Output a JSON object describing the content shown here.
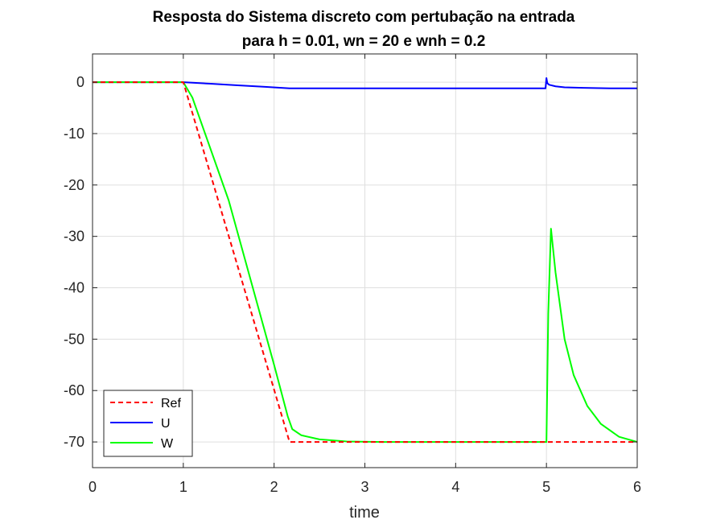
{
  "chart_data": {
    "type": "line",
    "title": [
      "Resposta do Sistema discreto com pertubação na entrada",
      "para h = 0.01, wn = 20 e wnh = 0.2"
    ],
    "xlabel": "time",
    "ylabel": "",
    "xlim": [
      0,
      6
    ],
    "ylim": [
      -75,
      5.5
    ],
    "xticks": [
      0,
      1,
      2,
      3,
      4,
      5,
      6
    ],
    "yticks": [
      0,
      -10,
      -20,
      -30,
      -40,
      -50,
      -60,
      -70
    ],
    "grid": true,
    "legend_position": "bottom-left",
    "series": [
      {
        "name": "Ref",
        "color": "#ff0000",
        "style": "dashed",
        "x": [
          0,
          1,
          2.17,
          5,
          6
        ],
        "y": [
          0,
          0,
          -70,
          -70,
          -70
        ]
      },
      {
        "name": "U",
        "color": "#0000ff",
        "style": "solid",
        "x": [
          0,
          1,
          1.3,
          1.6,
          1.9,
          2.17,
          2.5,
          3,
          4,
          4.99,
          5,
          5.01,
          5.03,
          5.1,
          5.2,
          5.4,
          5.7,
          6
        ],
        "y": [
          0,
          0,
          -0.3,
          -0.6,
          -0.9,
          -1.2,
          -1.2,
          -1.2,
          -1.2,
          -1.2,
          0.8,
          -0.2,
          -0.5,
          -0.8,
          -1.0,
          -1.1,
          -1.2,
          -1.2
        ]
      },
      {
        "name": "W",
        "color": "#00ff00",
        "style": "solid",
        "x": [
          0,
          1,
          1.1,
          1.5,
          2.0,
          2.15,
          2.2,
          2.3,
          2.5,
          2.8,
          3.2,
          4,
          4.99,
          5.0,
          5.02,
          5.05,
          5.1,
          5.2,
          5.3,
          5.45,
          5.6,
          5.8,
          6
        ],
        "y": [
          0,
          0,
          -3,
          -23,
          -55,
          -65,
          -67.5,
          -68.7,
          -69.5,
          -69.9,
          -70,
          -70,
          -70,
          -70,
          -45,
          -28.5,
          -37,
          -50,
          -57,
          -63,
          -66.5,
          -69,
          -70
        ]
      }
    ]
  }
}
